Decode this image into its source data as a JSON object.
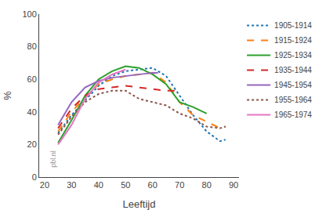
{
  "chart_data": {
    "type": "line",
    "xlabel": "Leeftijd",
    "ylabel": "%",
    "annotations": [
      "pbl.nl"
    ],
    "xlim": [
      18,
      92
    ],
    "ylim": [
      0,
      100
    ],
    "xticks": [
      20,
      30,
      40,
      50,
      60,
      70,
      80,
      90
    ],
    "yticks": [
      0,
      20,
      40,
      60,
      80,
      100
    ],
    "grid": false,
    "legend": "right",
    "series": [
      {
        "name": "1905-1914",
        "line_style": "dotted",
        "x": [
          25,
          30,
          35,
          40,
          45,
          50,
          55,
          60,
          65,
          70,
          75,
          80,
          85,
          87
        ],
        "values": [
          27,
          38,
          47,
          56,
          62,
          65,
          66,
          67,
          62,
          50,
          38,
          28,
          22,
          23
        ]
      },
      {
        "name": "1915-1924",
        "line_style": "dashed",
        "x": [
          25,
          30,
          35,
          40,
          45,
          50,
          55,
          60,
          65,
          70,
          75,
          80,
          85,
          87
        ],
        "values": [
          28,
          40,
          49,
          57,
          60,
          62,
          63,
          64,
          58,
          46,
          38,
          34,
          30,
          31
        ]
      },
      {
        "name": "1925-1934",
        "line_style": "solid",
        "x": [
          25,
          30,
          35,
          40,
          45,
          50,
          55,
          60,
          65,
          70,
          75,
          80
        ],
        "values": [
          21,
          35,
          50,
          60,
          65,
          68,
          67,
          63,
          57,
          46,
          43,
          39
        ]
      },
      {
        "name": "1935-1944",
        "line_style": "dashed",
        "x": [
          25,
          30,
          35,
          40,
          45,
          50,
          55,
          60,
          65,
          70
        ],
        "values": [
          30,
          42,
          50,
          54,
          55,
          56,
          55,
          54,
          53,
          53
        ]
      },
      {
        "name": "1945-1954",
        "line_style": "solid",
        "x": [
          25,
          30,
          35,
          40,
          45,
          50,
          55,
          60,
          62
        ],
        "values": [
          32,
          46,
          55,
          59,
          61,
          62,
          63,
          64,
          64
        ]
      },
      {
        "name": "1955-1964",
        "line_style": "dotted",
        "x": [
          25,
          30,
          35,
          40,
          45,
          50,
          55,
          60,
          65,
          70,
          75,
          80,
          85,
          87
        ],
        "values": [
          26,
          37,
          46,
          51,
          53,
          53,
          48,
          46,
          44,
          39,
          36,
          31,
          30,
          31
        ]
      },
      {
        "name": "1965-1974",
        "line_style": "solid",
        "x": [
          25,
          30,
          35,
          40,
          45,
          50
        ],
        "values": [
          20,
          32,
          48,
          58,
          63,
          66
        ]
      }
    ]
  }
}
